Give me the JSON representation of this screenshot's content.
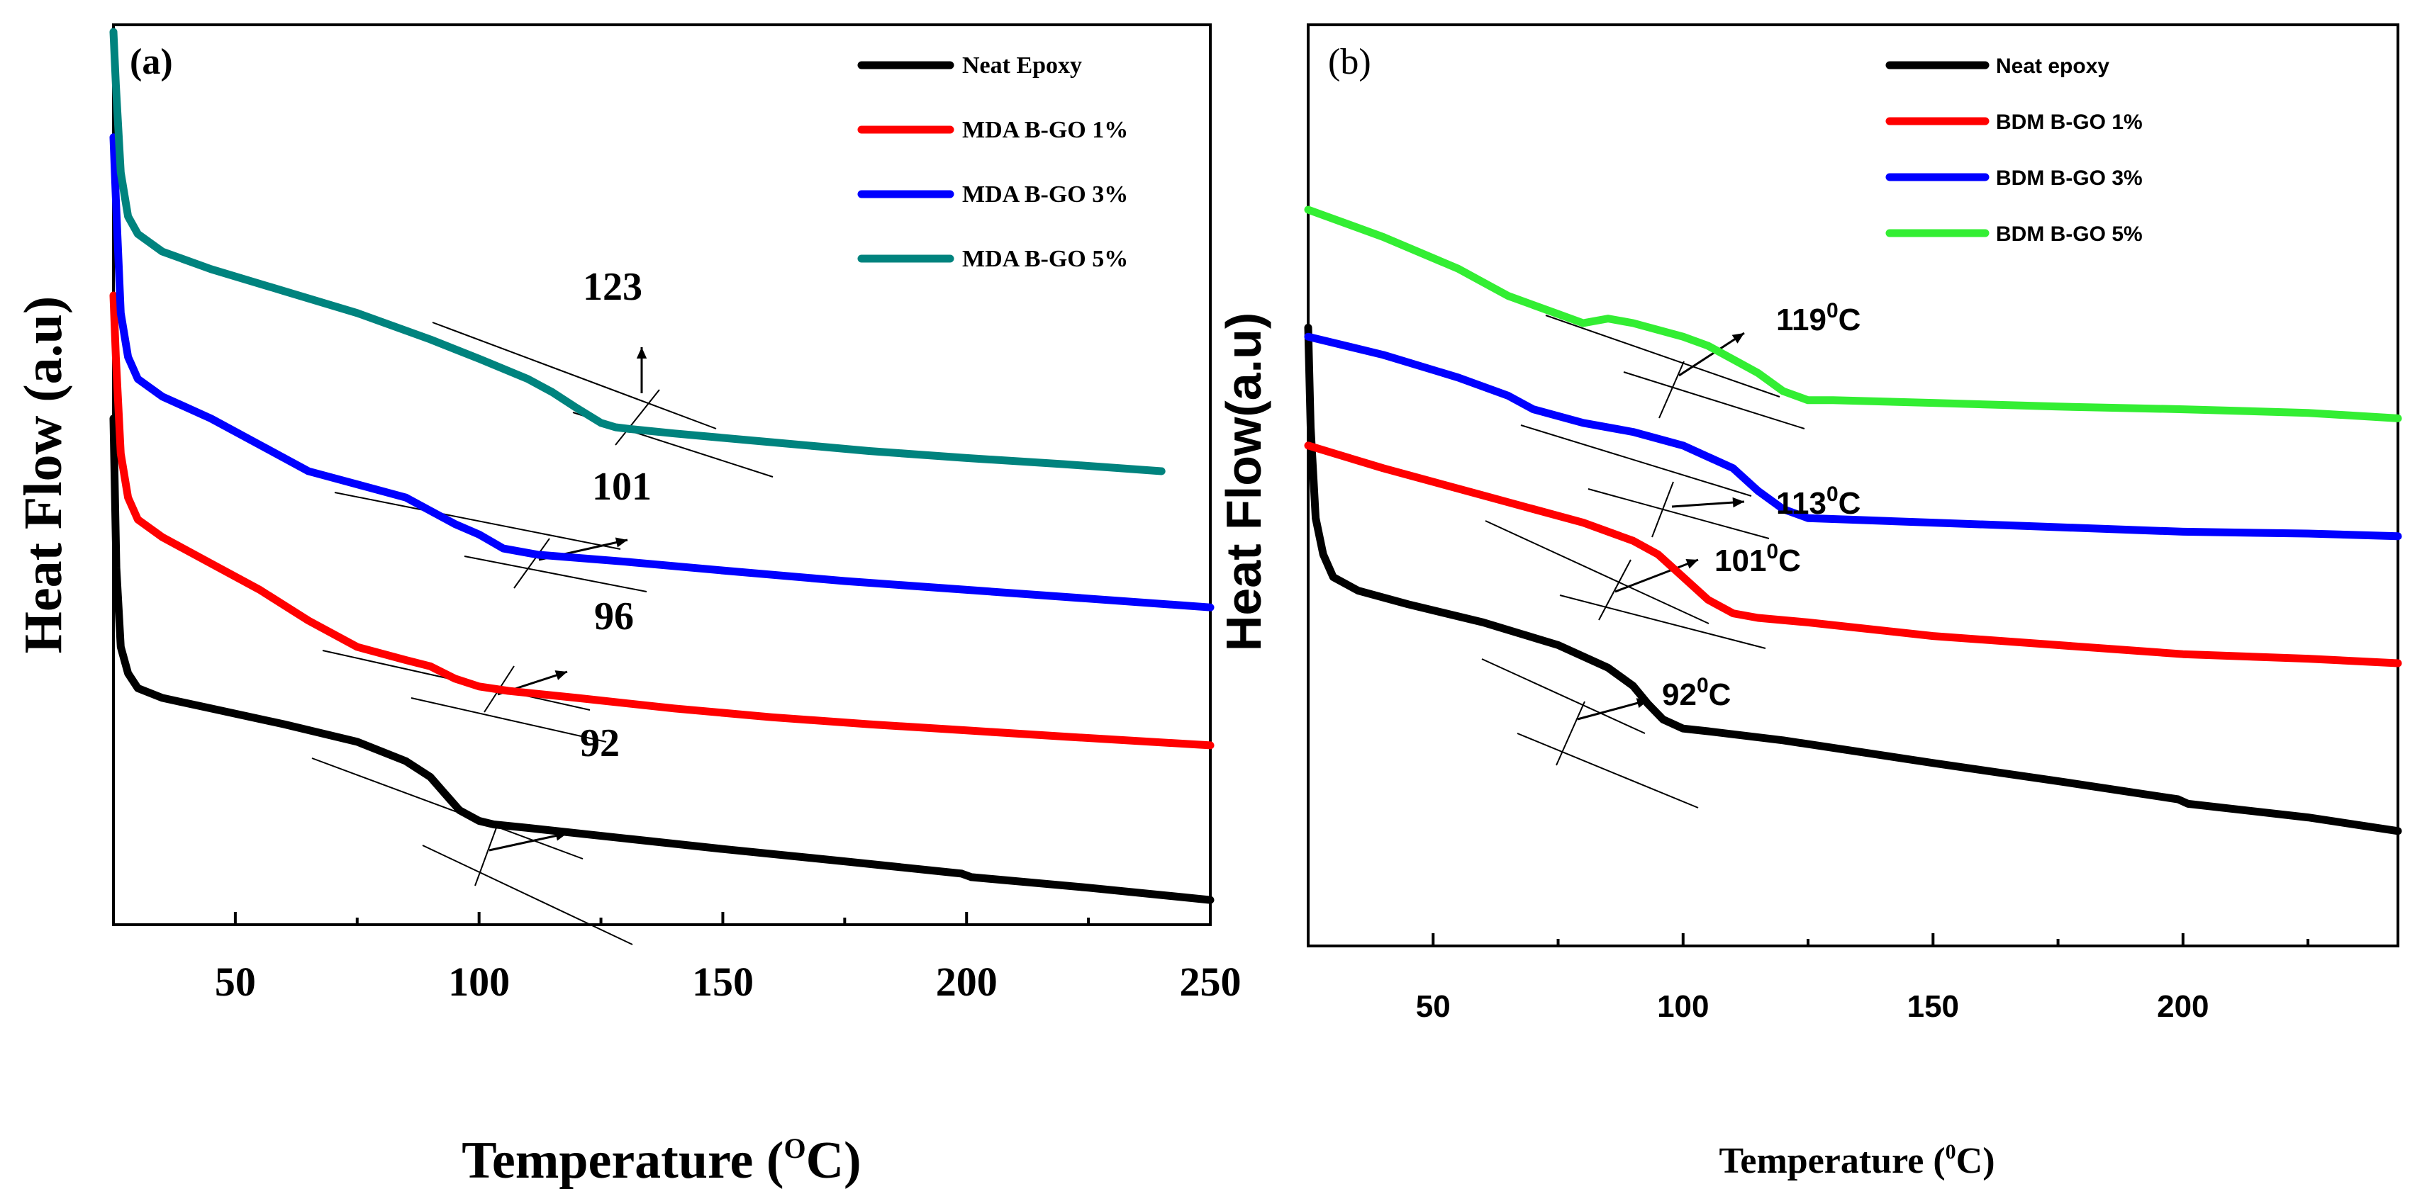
{
  "chart_data": [
    {
      "panel_label": "(a)",
      "type": "line",
      "xlabel_main": "Temperature (",
      "xlabel_sup": "O",
      "xlabel_end": "C)",
      "ylabel": "Heat Flow (a.u)",
      "xlim": [
        25,
        250
      ],
      "ylim": [
        0,
        10
      ],
      "xticks": [
        50,
        100,
        150,
        200,
        250
      ],
      "legend_position": "top-right",
      "series": [
        {
          "name": "Neat Epoxy",
          "color": "#000000",
          "x": [
            25,
            25.6,
            26.5,
            28,
            30,
            35,
            45,
            60,
            75,
            85,
            90,
            93,
            96,
            100,
            103,
            110,
            130,
            150,
            175,
            199,
            201,
            225,
            250
          ],
          "y": [
            5.6,
            3.9,
            3.0,
            2.7,
            2.53,
            2.42,
            2.3,
            2.12,
            1.92,
            1.7,
            1.52,
            1.33,
            1.14,
            1.02,
            0.98,
            0.94,
            0.82,
            0.7,
            0.56,
            0.42,
            0.38,
            0.26,
            0.12
          ]
        },
        {
          "name": "MDA B-GO 1%",
          "color": "#ff0000",
          "x": [
            25,
            25.5,
            26.5,
            28,
            30,
            35,
            45,
            55,
            65,
            75,
            85,
            90,
            95,
            100,
            106,
            120,
            140,
            160,
            180,
            200,
            220,
            250
          ],
          "y": [
            7.0,
            6.3,
            5.2,
            4.7,
            4.45,
            4.25,
            3.95,
            3.65,
            3.3,
            3.0,
            2.85,
            2.78,
            2.64,
            2.55,
            2.5,
            2.42,
            2.3,
            2.2,
            2.12,
            2.05,
            1.98,
            1.88
          ]
        },
        {
          "name": "MDA B-GO 3%",
          "color": "#0000ff",
          "x": [
            25,
            25.5,
            26.5,
            28,
            30,
            35,
            45,
            55,
            65,
            75,
            85,
            90,
            95,
            100,
            105,
            112,
            130,
            150,
            175,
            200,
            225,
            250
          ],
          "y": [
            8.8,
            8.1,
            6.8,
            6.3,
            6.05,
            5.85,
            5.6,
            5.3,
            5.0,
            4.85,
            4.7,
            4.55,
            4.4,
            4.28,
            4.12,
            4.05,
            3.97,
            3.87,
            3.75,
            3.65,
            3.55,
            3.45
          ]
        },
        {
          "name": "MDA B-GO 5%",
          "color": "#00837e",
          "x": [
            25,
            25.5,
            26.5,
            28,
            30,
            35,
            45,
            60,
            75,
            90,
            100,
            110,
            115,
            120,
            125,
            128,
            131,
            140,
            160,
            180,
            200,
            220,
            240
          ],
          "y": [
            10.0,
            9.4,
            8.4,
            7.9,
            7.7,
            7.5,
            7.3,
            7.05,
            6.8,
            6.5,
            6.28,
            6.05,
            5.9,
            5.72,
            5.55,
            5.5,
            5.48,
            5.43,
            5.33,
            5.23,
            5.15,
            5.08,
            5.0
          ]
        }
      ],
      "annotations": [
        "123",
        "101",
        "96",
        "92"
      ]
    },
    {
      "panel_label": "(b)",
      "type": "line",
      "xlabel_main": "Temperature (",
      "xlabel_sup": "0",
      "xlabel_end": "C)",
      "ylabel": "Heat Flow(a.u)",
      "xlim": [
        25,
        243
      ],
      "ylim": [
        0,
        10
      ],
      "xticks": [
        50,
        100,
        150,
        200
      ],
      "legend_position": "top-right",
      "series": [
        {
          "name": "Neat epoxy",
          "color": "#000000",
          "x": [
            25,
            25.5,
            26.5,
            28,
            30,
            35,
            45,
            60,
            75,
            85,
            90,
            93,
            96,
            100,
            105,
            120,
            150,
            175,
            199,
            201,
            225,
            243
          ],
          "y": [
            6.7,
            5.6,
            4.6,
            4.2,
            3.95,
            3.8,
            3.65,
            3.45,
            3.2,
            2.95,
            2.75,
            2.55,
            2.38,
            2.28,
            2.25,
            2.15,
            1.9,
            1.7,
            1.5,
            1.45,
            1.3,
            1.15
          ]
        },
        {
          "name": "BDM B-GO 1%",
          "color": "#ff0000",
          "x": [
            25,
            40,
            60,
            80,
            90,
            95,
            100,
            105,
            110,
            115,
            125,
            150,
            175,
            200,
            225,
            243
          ],
          "y": [
            5.4,
            5.15,
            4.85,
            4.55,
            4.35,
            4.2,
            3.95,
            3.7,
            3.55,
            3.5,
            3.45,
            3.3,
            3.2,
            3.1,
            3.05,
            3.0
          ]
        },
        {
          "name": "BDM B-GO 3%",
          "color": "#0000ff",
          "x": [
            25,
            40,
            55,
            65,
            70,
            80,
            90,
            100,
            110,
            115,
            120,
            125,
            135,
            150,
            175,
            200,
            225,
            243
          ],
          "y": [
            6.6,
            6.4,
            6.15,
            5.95,
            5.8,
            5.65,
            5.55,
            5.4,
            5.15,
            4.9,
            4.7,
            4.6,
            4.58,
            4.55,
            4.5,
            4.45,
            4.43,
            4.4
          ]
        },
        {
          "name": "BDM B-GO 5%",
          "color": "#33ee33",
          "x": [
            25,
            40,
            55,
            60,
            65,
            70,
            75,
            80,
            85,
            90,
            100,
            105,
            110,
            115,
            120,
            125,
            130,
            150,
            175,
            200,
            225,
            243
          ],
          "y": [
            8.0,
            7.7,
            7.35,
            7.2,
            7.05,
            6.95,
            6.85,
            6.75,
            6.8,
            6.75,
            6.6,
            6.5,
            6.35,
            6.2,
            6.0,
            5.9,
            5.9,
            5.87,
            5.83,
            5.8,
            5.76,
            5.7
          ]
        }
      ],
      "annotations": [
        {
          "value": "119",
          "sup": "0",
          "unit": "C"
        },
        {
          "value": "113",
          "sup": "0",
          "unit": "C"
        },
        {
          "value": "101",
          "sup": "0",
          "unit": "C"
        },
        {
          "value": "92",
          "sup": "0",
          "unit": "C"
        }
      ]
    }
  ]
}
